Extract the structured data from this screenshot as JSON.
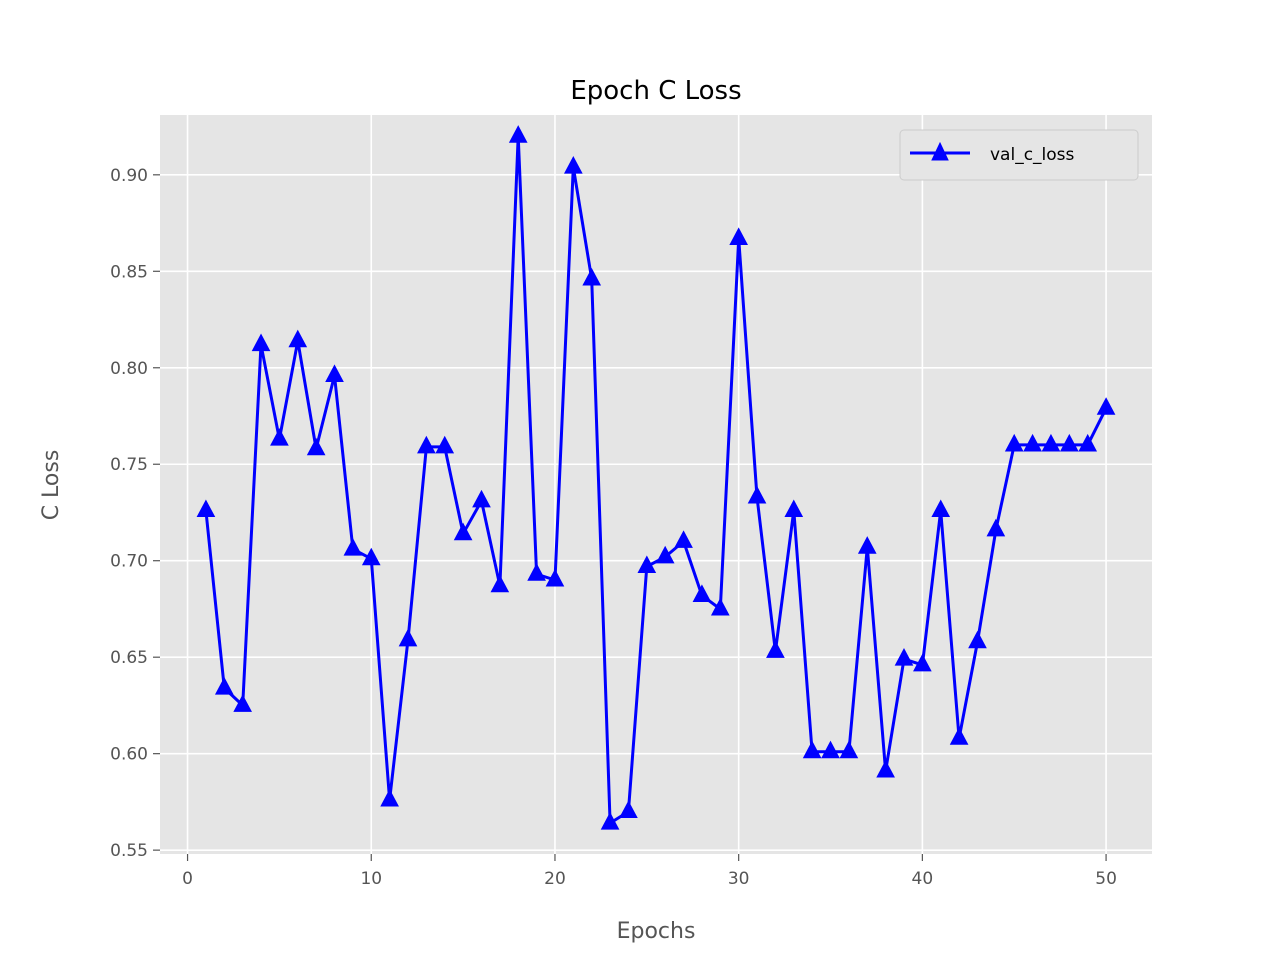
{
  "chart_data": {
    "type": "line",
    "title": "Epoch C Loss",
    "xlabel": "Epochs",
    "ylabel": "C Loss",
    "xlim": [
      -1.5,
      52.5
    ],
    "ylim": [
      0.548,
      0.931
    ],
    "xticks": [
      0,
      10,
      20,
      30,
      40,
      50
    ],
    "xtick_labels": [
      "0",
      "10",
      "20",
      "30",
      "40",
      "50"
    ],
    "yticks": [
      0.55,
      0.6,
      0.65,
      0.7,
      0.75,
      0.8,
      0.85,
      0.9
    ],
    "ytick_labels": [
      "0.55",
      "0.60",
      "0.65",
      "0.70",
      "0.75",
      "0.80",
      "0.85",
      "0.90"
    ],
    "grid": true,
    "legend_position": "top-right",
    "x": [
      1,
      2,
      3,
      4,
      5,
      6,
      7,
      8,
      9,
      10,
      11,
      12,
      13,
      14,
      15,
      16,
      17,
      18,
      19,
      20,
      21,
      22,
      23,
      24,
      25,
      26,
      27,
      28,
      29,
      30,
      31,
      32,
      33,
      34,
      35,
      36,
      37,
      38,
      39,
      40,
      41,
      42,
      43,
      44,
      45,
      46,
      47,
      48,
      49,
      50
    ],
    "series": [
      {
        "name": "val_c_loss",
        "color": "#0000ff",
        "marker": "triangle-up",
        "values": [
          0.726,
          0.634,
          0.625,
          0.812,
          0.763,
          0.814,
          0.758,
          0.796,
          0.706,
          0.701,
          0.576,
          0.659,
          0.759,
          0.759,
          0.714,
          0.731,
          0.687,
          0.92,
          0.693,
          0.69,
          0.904,
          0.846,
          0.564,
          0.57,
          0.697,
          0.702,
          0.71,
          0.682,
          0.675,
          0.867,
          0.733,
          0.653,
          0.726,
          0.601,
          0.601,
          0.601,
          0.707,
          0.591,
          0.649,
          0.646,
          0.726,
          0.608,
          0.658,
          0.716,
          0.76,
          0.76,
          0.76,
          0.76,
          0.76,
          0.779
        ]
      }
    ]
  }
}
